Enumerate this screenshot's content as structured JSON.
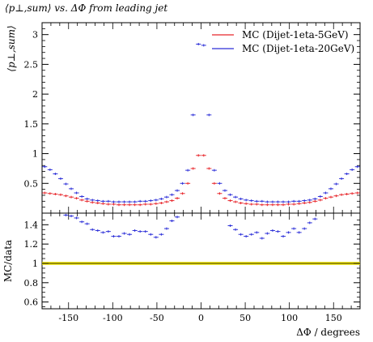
{
  "chart_data": [
    {
      "type": "scatter",
      "title": "⟨p⊥,sum⟩ vs. ΔΦ from leading jet",
      "ylabel": "⟨p⊥,sum⟩",
      "xlim": [
        -180,
        180
      ],
      "ylim": [
        0,
        3.2
      ],
      "xticks": [
        -150,
        -100,
        -50,
        0,
        50,
        100,
        150
      ],
      "yticks": [
        0.5,
        1,
        1.5,
        2,
        2.5,
        3
      ],
      "ytick_labels": [
        "0.5",
        "1",
        "1.5",
        "2",
        "2.5",
        "3"
      ],
      "legend_position": "top-right",
      "series": [
        {
          "name": "MC (Dijet-1eta-5GeV)",
          "color": "#e8262b",
          "x": [
            -177,
            -171,
            -165,
            -159,
            -153,
            -147,
            -141,
            -135,
            -129,
            -123,
            -117,
            -111,
            -105,
            -99,
            -93,
            -87,
            -81,
            -75,
            -69,
            -63,
            -57,
            -51,
            -45,
            -39,
            -33,
            -27,
            -21,
            -15,
            -9,
            -3,
            3,
            9,
            15,
            21,
            27,
            33,
            39,
            45,
            51,
            57,
            63,
            69,
            75,
            81,
            87,
            93,
            99,
            105,
            111,
            117,
            123,
            129,
            135,
            141,
            147,
            153,
            159,
            165,
            171,
            177
          ],
          "y": [
            0.34,
            0.33,
            0.32,
            0.31,
            0.29,
            0.27,
            0.25,
            0.22,
            0.2,
            0.18,
            0.17,
            0.16,
            0.15,
            0.15,
            0.14,
            0.14,
            0.14,
            0.14,
            0.14,
            0.15,
            0.15,
            0.16,
            0.17,
            0.19,
            0.21,
            0.25,
            0.33,
            0.5,
            0.75,
            0.97,
            0.97,
            0.75,
            0.5,
            0.33,
            0.25,
            0.21,
            0.19,
            0.17,
            0.16,
            0.15,
            0.15,
            0.14,
            0.14,
            0.14,
            0.14,
            0.14,
            0.15,
            0.15,
            0.16,
            0.17,
            0.18,
            0.2,
            0.22,
            0.25,
            0.27,
            0.29,
            0.31,
            0.32,
            0.33,
            0.34
          ]
        },
        {
          "name": "MC (Dijet-1eta-20GeV)",
          "color": "#2c2fd8",
          "x": [
            -177,
            -171,
            -165,
            -159,
            -153,
            -147,
            -141,
            -135,
            -129,
            -123,
            -117,
            -111,
            -105,
            -99,
            -93,
            -87,
            -81,
            -75,
            -69,
            -63,
            -57,
            -51,
            -45,
            -39,
            -33,
            -27,
            -21,
            -15,
            -9,
            -3,
            3,
            9,
            15,
            21,
            27,
            33,
            39,
            45,
            51,
            57,
            63,
            69,
            75,
            81,
            87,
            93,
            99,
            105,
            111,
            117,
            123,
            129,
            135,
            141,
            147,
            153,
            159,
            165,
            171,
            177
          ],
          "y": [
            0.78,
            0.73,
            0.66,
            0.58,
            0.49,
            0.41,
            0.34,
            0.28,
            0.24,
            0.22,
            0.21,
            0.2,
            0.2,
            0.19,
            0.19,
            0.19,
            0.19,
            0.19,
            0.2,
            0.2,
            0.21,
            0.22,
            0.24,
            0.27,
            0.31,
            0.38,
            0.5,
            0.72,
            1.65,
            2.84,
            2.82,
            1.65,
            0.72,
            0.5,
            0.38,
            0.31,
            0.27,
            0.24,
            0.22,
            0.21,
            0.2,
            0.2,
            0.19,
            0.19,
            0.19,
            0.19,
            0.19,
            0.2,
            0.2,
            0.21,
            0.22,
            0.24,
            0.28,
            0.34,
            0.41,
            0.49,
            0.58,
            0.66,
            0.73,
            0.78
          ]
        }
      ]
    },
    {
      "type": "scatter",
      "xlabel": "ΔΦ / degrees",
      "ylabel": "MC/data",
      "xlim": [
        -180,
        180
      ],
      "ylim": [
        0.53,
        1.52
      ],
      "xticks": [
        -150,
        -100,
        -50,
        0,
        50,
        100,
        150
      ],
      "xtick_labels": [
        "-150",
        "-100",
        "-50",
        "0",
        "50",
        "100",
        "150"
      ],
      "yticks": [
        0.6,
        0.8,
        1,
        1.2,
        1.4
      ],
      "ytick_labels": [
        "0.6",
        "0.8",
        "1",
        "1.2",
        "1.4"
      ],
      "reference_band": {
        "y": 1.0,
        "low": 0.985,
        "high": 1.015,
        "color": "#f2e600"
      },
      "series": [
        {
          "name": "MC (Dijet-1eta-20GeV)",
          "color": "#2c2fd8",
          "x": [
            -153,
            -147,
            -141,
            -135,
            -129,
            -123,
            -117,
            -111,
            -105,
            -99,
            -93,
            -87,
            -81,
            -75,
            -69,
            -63,
            -57,
            -51,
            -45,
            -39,
            -33,
            -27,
            33,
            39,
            45,
            51,
            57,
            63,
            69,
            75,
            81,
            87,
            93,
            99,
            105,
            111,
            117,
            123,
            129
          ],
          "y": [
            1.5,
            1.49,
            1.47,
            1.43,
            1.41,
            1.35,
            1.34,
            1.32,
            1.33,
            1.28,
            1.28,
            1.31,
            1.3,
            1.34,
            1.33,
            1.33,
            1.3,
            1.27,
            1.3,
            1.36,
            1.44,
            1.48,
            1.39,
            1.35,
            1.3,
            1.28,
            1.3,
            1.32,
            1.26,
            1.31,
            1.34,
            1.33,
            1.28,
            1.32,
            1.36,
            1.32,
            1.36,
            1.42,
            1.46
          ]
        }
      ]
    }
  ]
}
